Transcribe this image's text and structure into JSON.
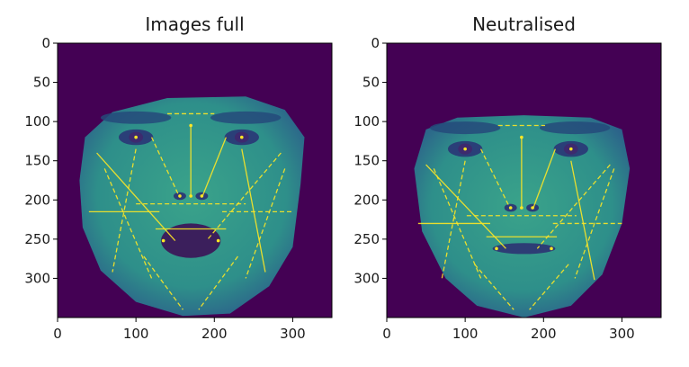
{
  "chart_data": [
    {
      "type": "heatmap",
      "title": "Images full",
      "colormap": "viridis",
      "background_color": "#440154",
      "face_color": "#2e8f8a",
      "landmark_color": "#fde725",
      "x_range": [
        0,
        350
      ],
      "y_range": [
        350,
        0
      ],
      "x_ticks": [
        0,
        100,
        200,
        300
      ],
      "y_ticks": [
        0,
        50,
        100,
        150,
        200,
        250,
        300
      ],
      "features": {
        "eyes": [
          [
            100,
            120
          ],
          [
            235,
            120
          ]
        ],
        "brows": [
          [
            100,
            95
          ],
          [
            240,
            95
          ]
        ],
        "nose_x": 170,
        "nose_top": 105,
        "nose_bottom": 195,
        "mouth": [
          170,
          252
        ],
        "mouth_open": true
      }
    },
    {
      "type": "heatmap",
      "title": "Neutralised",
      "colormap": "viridis",
      "background_color": "#440154",
      "face_color": "#2e8f8a",
      "landmark_color": "#fde725",
      "x_range": [
        0,
        350
      ],
      "y_range": [
        350,
        0
      ],
      "x_ticks": [
        0,
        100,
        200,
        300
      ],
      "y_ticks": [
        0,
        50,
        100,
        150,
        200,
        250,
        300
      ],
      "features": {
        "eyes": [
          [
            100,
            135
          ],
          [
            235,
            135
          ]
        ],
        "brows": [
          [
            100,
            108
          ],
          [
            240,
            108
          ]
        ],
        "nose_x": 172,
        "nose_top": 120,
        "nose_bottom": 210,
        "mouth": [
          175,
          262
        ],
        "mouth_open": false
      }
    }
  ]
}
